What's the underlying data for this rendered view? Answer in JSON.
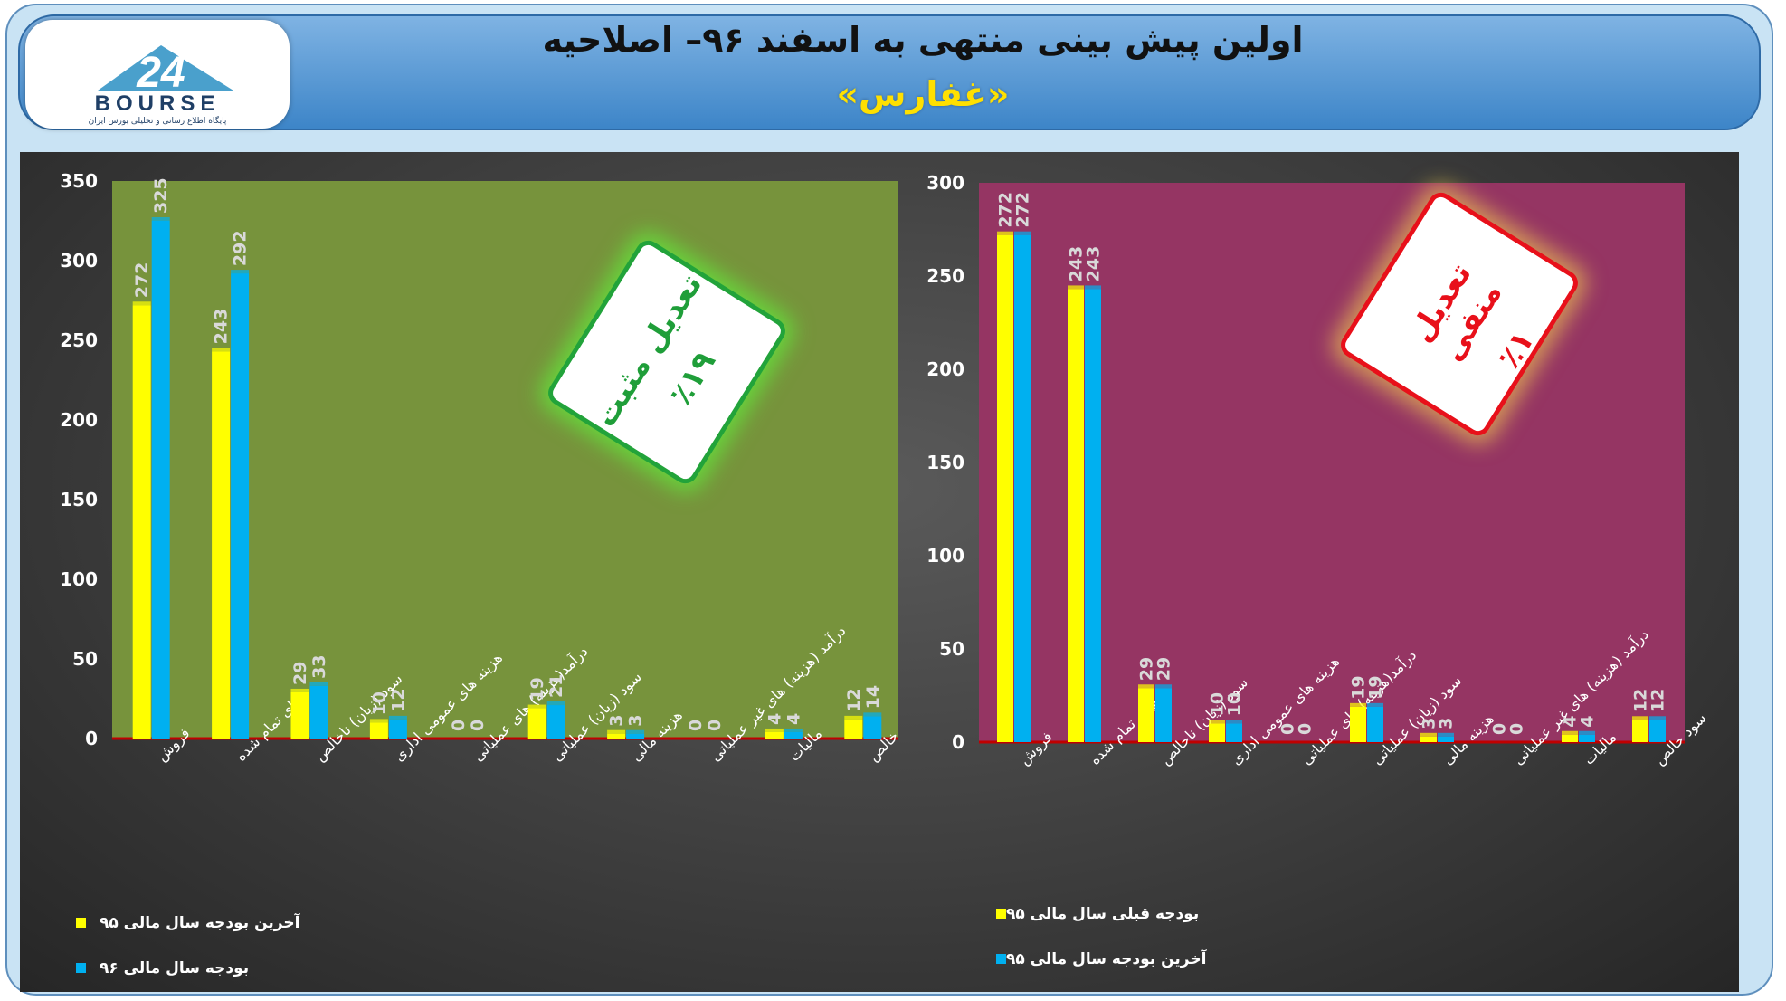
{
  "header": {
    "title": "اولین پیش بینی منتهی به اسفند ۹۶– اصلاحیه",
    "subtitle": "«غفارس»"
  },
  "logo": {
    "word": "BOURSE",
    "numeral": "24",
    "tagline": "پایگاه اطلاع رسانی و تحلیلی بورس ایران"
  },
  "colors": {
    "yellow": "#ffff00",
    "blue": "#00b0f0",
    "left_plot_bg": "#77933c",
    "right_plot_bg": "#953563",
    "positive": "#22a33a",
    "negative": "#e8101a"
  },
  "badges": {
    "left": {
      "title": "تعدیل مثبت",
      "pct": "٪۱۹"
    },
    "right": {
      "title": "تعدیل منفی",
      "pct": "٪۱"
    }
  },
  "legends": {
    "left": [
      "آخرین بودجه سال مالی ۹۵",
      "بودجه سال مالی ۹۶"
    ],
    "right": [
      "بودجه قبلی سال مالی ۹۵",
      "آخرین بودجه سال مالی ۹۵"
    ]
  },
  "chart_data": [
    {
      "type": "bar",
      "categories": [
        "فروش",
        "بهای تمام شده",
        "سود (زیان) ناخالص",
        "هزینه های عمومی اداری",
        "درآمد(هزینه) های عملیاتی",
        "سود (زیان) عملیاتی",
        "هزینه مالی",
        "درآمد (هزینه) های غیر عملیاتی",
        "مالیات",
        "سود خالص"
      ],
      "series": [
        {
          "name": "آخرین بودجه سال مالی ۹۵",
          "color": "#ffff00",
          "values": [
            272,
            243,
            29,
            10,
            0,
            19,
            3,
            0,
            4,
            12
          ]
        },
        {
          "name": "بودجه سال مالی ۹۶",
          "color": "#00b0f0",
          "values": [
            325,
            292,
            33,
            12,
            0,
            21,
            3,
            0,
            4,
            14
          ]
        }
      ],
      "ylim": [
        0,
        350
      ],
      "yticks": [
        0,
        50,
        100,
        150,
        200,
        250,
        300,
        350
      ],
      "legend": "bottom-left",
      "grid": false
    },
    {
      "type": "bar",
      "categories": [
        "فروش",
        "بهای تمام شده",
        "سود (زیان) ناخالص",
        "هزینه های عمومی اداری",
        "درآمد(هزینه) های عملیاتی",
        "سود (زیان) عملیاتی",
        "هزینه مالی",
        "درآمد (هزینه) های غیر عملیاتی",
        "مالیات",
        "سود خالص"
      ],
      "series": [
        {
          "name": "بودجه قبلی سال مالی ۹۵",
          "color": "#ffff00",
          "values": [
            272,
            243,
            29,
            10,
            0,
            19,
            3,
            0,
            4,
            12
          ]
        },
        {
          "name": "آخرین بودجه سال مالی ۹۵",
          "color": "#00b0f0",
          "values": [
            272,
            243,
            29,
            10,
            0,
            19,
            3,
            0,
            4,
            12
          ]
        }
      ],
      "ylim": [
        0,
        300
      ],
      "yticks": [
        0,
        50,
        100,
        150,
        200,
        250,
        300
      ],
      "legend": "bottom-left",
      "grid": false
    }
  ]
}
